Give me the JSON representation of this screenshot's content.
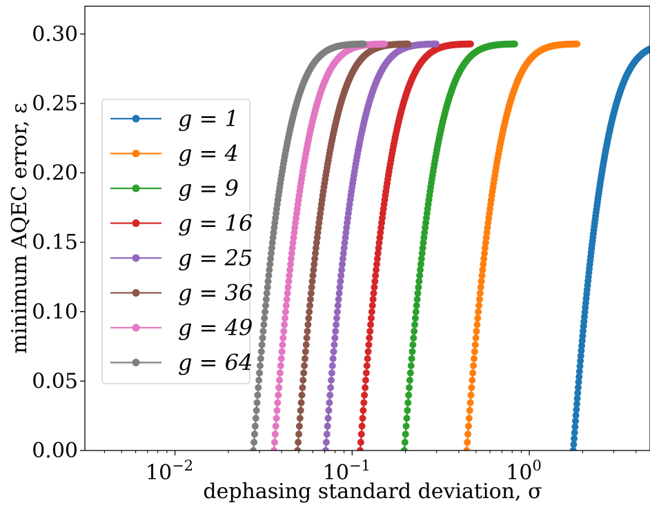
{
  "chart_data": {
    "type": "line",
    "title": "",
    "xlabel": "dephasing standard deviation, σ",
    "ylabel": "minimum AQEC error, ε",
    "xscale": "log",
    "xlim": [
      0.0031,
      4.8
    ],
    "ylim": [
      0.0,
      0.32
    ],
    "yticks": [
      0.0,
      0.05,
      0.1,
      0.15,
      0.2,
      0.25,
      0.3
    ],
    "ytick_labels": [
      "0.00",
      "0.05",
      "0.10",
      "0.15",
      "0.20",
      "0.25",
      "0.30"
    ],
    "xticks": [
      0.01,
      0.1,
      1
    ],
    "xtick_labels": [
      "10",
      "10",
      "10"
    ],
    "xtick_exponents": [
      "−2",
      "−1",
      "0"
    ],
    "plateau": 0.2929,
    "grid": false,
    "legend_position": "center-left",
    "series": [
      {
        "name": "g = 1",
        "color": "#1f77b4",
        "sigma_start": 1.77
      },
      {
        "name": "g = 4",
        "color": "#ff7f0e",
        "sigma_start": 0.443
      },
      {
        "name": "g = 9",
        "color": "#2ca02c",
        "sigma_start": 0.197
      },
      {
        "name": "g = 16",
        "color": "#d62728",
        "sigma_start": 0.111
      },
      {
        "name": "g = 25",
        "color": "#9467bd",
        "sigma_start": 0.0709
      },
      {
        "name": "g = 36",
        "color": "#8c564b",
        "sigma_start": 0.0492
      },
      {
        "name": "g = 49",
        "color": "#e377c2",
        "sigma_start": 0.0362
      },
      {
        "name": "g = 64",
        "color": "#7f7f7f",
        "sigma_start": 0.0277
      }
    ]
  }
}
